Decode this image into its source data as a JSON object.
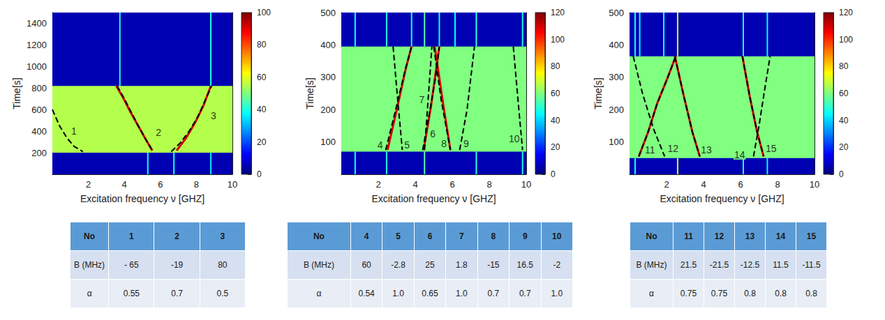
{
  "chart_data": [
    {
      "type": "heatmap",
      "xlabel": "Excitation frequency ν [GHZ]",
      "ylabel": "Time[s]",
      "xlim": [
        0,
        10
      ],
      "xticks": [
        2,
        4,
        6,
        8,
        10
      ],
      "ylim": [
        0,
        1500
      ],
      "yticks": [
        200,
        400,
        600,
        800,
        1000,
        1200,
        1400
      ],
      "grid": false,
      "colorbar": {
        "range": [
          0,
          100
        ],
        "ticks": [
          0,
          20,
          40,
          60,
          80,
          100
        ]
      },
      "regions": [
        {
          "x": [
            0,
            10
          ],
          "y": [
            0,
            1500
          ],
          "value": 5
        },
        {
          "x": [
            0,
            10
          ],
          "y": [
            200,
            820
          ],
          "value": 55
        }
      ],
      "lines": [
        {
          "x": 3.75,
          "y": [
            820,
            1500
          ],
          "value": 40
        },
        {
          "x": 8.8,
          "y": [
            820,
            1500
          ],
          "value": 40
        },
        {
          "x": 5.3,
          "y": [
            0,
            200
          ],
          "value": 40
        },
        {
          "x": 6.75,
          "y": [
            0,
            200
          ],
          "value": 40
        },
        {
          "x": 8.8,
          "y": [
            0,
            200
          ],
          "value": 35
        }
      ],
      "series": [
        {
          "type": "line",
          "color": "#d40000",
          "line_style": "solid",
          "values": [
            [
              3.55,
              820
            ],
            [
              3.9,
              720
            ],
            [
              4.3,
              590
            ],
            [
              4.8,
              440
            ],
            [
              5.2,
              320
            ],
            [
              5.55,
              220
            ]
          ]
        },
        {
          "type": "line",
          "color": "#d40000",
          "line_style": "solid",
          "values": [
            [
              6.9,
              220
            ],
            [
              7.4,
              330
            ],
            [
              7.9,
              470
            ],
            [
              8.4,
              640
            ],
            [
              8.8,
              820
            ]
          ]
        },
        {
          "type": "line",
          "color": "#000000",
          "line_style": "dashed",
          "values": [
            [
              0,
              600
            ],
            [
              0.4,
              450
            ],
            [
              0.8,
              340
            ],
            [
              1.2,
              260
            ],
            [
              1.7,
              210
            ]
          ]
        },
        {
          "type": "line",
          "color": "#000000",
          "line_style": "dashed",
          "values": [
            [
              3.6,
              820
            ],
            [
              4.0,
              700
            ],
            [
              4.4,
              570
            ],
            [
              4.8,
              440
            ],
            [
              5.2,
              320
            ],
            [
              5.6,
              210
            ]
          ]
        },
        {
          "type": "line",
          "color": "#000000",
          "line_style": "dashed",
          "values": [
            [
              6.6,
              210
            ],
            [
              7.1,
              290
            ],
            [
              7.6,
              400
            ],
            [
              8.1,
              540
            ],
            [
              8.5,
              690
            ],
            [
              8.85,
              820
            ]
          ]
        }
      ],
      "annotations": [
        {
          "text": "1",
          "x": 1.2,
          "y": 400
        },
        {
          "text": "2",
          "x": 5.9,
          "y": 390
        },
        {
          "text": "3",
          "x": 8.95,
          "y": 540
        }
      ]
    },
    {
      "type": "heatmap",
      "xlabel": "Excitation frequency ν [GHZ]",
      "ylabel": "Time[s]",
      "xlim": [
        0,
        10
      ],
      "xticks": [
        2,
        4,
        6,
        8,
        10
      ],
      "ylim": [
        0,
        500
      ],
      "yticks": [
        100,
        200,
        300,
        400,
        500
      ],
      "grid": false,
      "colorbar": {
        "range": [
          0,
          120
        ],
        "ticks": [
          0,
          20,
          40,
          60,
          80,
          100,
          120
        ]
      },
      "regions": [
        {
          "x": [
            0,
            10
          ],
          "y": [
            0,
            500
          ],
          "value": 6
        },
        {
          "x": [
            0,
            10
          ],
          "y": [
            70,
            395
          ],
          "value": 60
        }
      ],
      "lines": [
        {
          "x": 0.75,
          "y": [
            395,
            500
          ],
          "value": 48
        },
        {
          "x": 2.45,
          "y": [
            395,
            500
          ],
          "value": 48
        },
        {
          "x": 3.8,
          "y": [
            395,
            500
          ],
          "value": 48
        },
        {
          "x": 4.5,
          "y": [
            395,
            500
          ],
          "value": 55
        },
        {
          "x": 5.3,
          "y": [
            395,
            500
          ],
          "value": 48
        },
        {
          "x": 6.15,
          "y": [
            395,
            500
          ],
          "value": 45
        },
        {
          "x": 7.3,
          "y": [
            395,
            500
          ],
          "value": 50
        },
        {
          "x": 9.8,
          "y": [
            395,
            500
          ],
          "value": 48
        },
        {
          "x": 0.75,
          "y": [
            0,
            70
          ],
          "value": 48
        },
        {
          "x": 2.45,
          "y": [
            0,
            70
          ],
          "value": 48
        },
        {
          "x": 4.5,
          "y": [
            0,
            70
          ],
          "value": 55
        },
        {
          "x": 7.3,
          "y": [
            0,
            70
          ],
          "value": 50
        },
        {
          "x": 9.8,
          "y": [
            0,
            70
          ],
          "value": 48
        }
      ],
      "series": [
        {
          "type": "line",
          "color": "#d40000",
          "line_style": "solid",
          "values": [
            [
              2.5,
              75
            ],
            [
              3.0,
              200
            ],
            [
              3.5,
              330
            ],
            [
              3.8,
              395
            ]
          ]
        },
        {
          "type": "line",
          "color": "#d40000",
          "line_style": "solid",
          "values": [
            [
              4.45,
              75
            ],
            [
              4.85,
              210
            ],
            [
              5.3,
              395
            ]
          ]
        },
        {
          "type": "line",
          "color": "#d40000",
          "line_style": "solid",
          "values": [
            [
              5.05,
              395
            ],
            [
              5.5,
              220
            ],
            [
              5.9,
              75
            ]
          ]
        },
        {
          "type": "line",
          "color": "#000000",
          "line_style": "dashed",
          "values": [
            [
              2.4,
              75
            ],
            [
              2.9,
              190
            ],
            [
              3.4,
              310
            ],
            [
              3.8,
              395
            ]
          ]
        },
        {
          "type": "line",
          "color": "#000000",
          "line_style": "dashed",
          "values": [
            [
              2.8,
              395
            ],
            [
              3.05,
              230
            ],
            [
              3.3,
              75
            ]
          ]
        },
        {
          "type": "line",
          "color": "#000000",
          "line_style": "dashed",
          "values": [
            [
              4.4,
              75
            ],
            [
              4.8,
              200
            ],
            [
              5.1,
              300
            ],
            [
              5.3,
              395
            ]
          ]
        },
        {
          "type": "line",
          "color": "#000000",
          "line_style": "dashed",
          "values": [
            [
              4.5,
              75
            ],
            [
              4.9,
              395
            ]
          ]
        },
        {
          "type": "line",
          "color": "#000000",
          "line_style": "dashed",
          "values": [
            [
              5.0,
              395
            ],
            [
              5.4,
              230
            ],
            [
              5.9,
              75
            ]
          ]
        },
        {
          "type": "line",
          "color": "#000000",
          "line_style": "dashed",
          "values": [
            [
              6.4,
              75
            ],
            [
              6.8,
              200
            ],
            [
              7.2,
              395
            ]
          ]
        },
        {
          "type": "line",
          "color": "#000000",
          "line_style": "dashed",
          "values": [
            [
              9.3,
              395
            ],
            [
              9.6,
              200
            ],
            [
              9.8,
              75
            ]
          ]
        }
      ],
      "annotations": [
        {
          "text": "4",
          "x": 2.1,
          "y": 90
        },
        {
          "text": "5",
          "x": 3.55,
          "y": 90
        },
        {
          "text": "6",
          "x": 4.95,
          "y": 125
        },
        {
          "text": "7",
          "x": 4.35,
          "y": 230
        },
        {
          "text": "8",
          "x": 5.55,
          "y": 95
        },
        {
          "text": "9",
          "x": 6.75,
          "y": 95
        },
        {
          "text": "10",
          "x": 9.35,
          "y": 110
        }
      ]
    },
    {
      "type": "heatmap",
      "xlabel": "Excitation frequency ν [GHZ]",
      "ylabel": "Time[s]",
      "xlim": [
        0,
        10
      ],
      "xticks": [
        2,
        4,
        6,
        8,
        10
      ],
      "ylim": [
        0,
        500
      ],
      "yticks": [
        100,
        200,
        300,
        400,
        500
      ],
      "grid": false,
      "colorbar": {
        "range": [
          0,
          120
        ],
        "ticks": [
          0,
          20,
          40,
          60,
          80,
          100,
          120
        ]
      },
      "regions": [
        {
          "x": [
            0,
            10
          ],
          "y": [
            0,
            500
          ],
          "value": 6
        },
        {
          "x": [
            0,
            10
          ],
          "y": [
            50,
            365
          ],
          "value": 60
        }
      ],
      "lines": [
        {
          "x": 0.3,
          "y": [
            365,
            500
          ],
          "value": 48
        },
        {
          "x": 0.55,
          "y": [
            365,
            500
          ],
          "value": 45
        },
        {
          "x": 1.85,
          "y": [
            365,
            500
          ],
          "value": 48
        },
        {
          "x": 2.6,
          "y": [
            365,
            500
          ],
          "value": 70
        },
        {
          "x": 6.15,
          "y": [
            365,
            500
          ],
          "value": 50
        },
        {
          "x": 7.45,
          "y": [
            365,
            500
          ],
          "value": 45
        },
        {
          "x": 0.3,
          "y": [
            0,
            50
          ],
          "value": 48
        },
        {
          "x": 2.6,
          "y": [
            0,
            50
          ],
          "value": 70
        },
        {
          "x": 6.15,
          "y": [
            0,
            50
          ],
          "value": 50
        },
        {
          "x": 7.45,
          "y": [
            0,
            50
          ],
          "value": 45
        }
      ],
      "series": [
        {
          "type": "line",
          "color": "#d40000",
          "line_style": "solid",
          "values": [
            [
              0.5,
              55
            ],
            [
              1.0,
              130
            ],
            [
              1.5,
              220
            ],
            [
              2.0,
              290
            ],
            [
              2.5,
              365
            ]
          ]
        },
        {
          "type": "line",
          "color": "#d40000",
          "line_style": "solid",
          "values": [
            [
              2.45,
              365
            ],
            [
              2.9,
              250
            ],
            [
              3.4,
              130
            ],
            [
              3.8,
              55
            ]
          ]
        },
        {
          "type": "line",
          "color": "#d40000",
          "line_style": "solid",
          "values": [
            [
              6.1,
              365
            ],
            [
              6.5,
              240
            ],
            [
              6.9,
              130
            ],
            [
              7.25,
              55
            ]
          ]
        },
        {
          "type": "line",
          "color": "#000000",
          "line_style": "dashed",
          "values": [
            [
              0.2,
              365
            ],
            [
              0.7,
              250
            ],
            [
              1.3,
              140
            ],
            [
              1.9,
              55
            ]
          ]
        },
        {
          "type": "line",
          "color": "#000000",
          "line_style": "dashed",
          "values": [
            [
              0.5,
              55
            ],
            [
              1.0,
              130
            ],
            [
              1.5,
              220
            ],
            [
              2.0,
              290
            ],
            [
              2.5,
              365
            ]
          ]
        },
        {
          "type": "line",
          "color": "#000000",
          "line_style": "dashed",
          "values": [
            [
              2.45,
              365
            ],
            [
              2.9,
              250
            ],
            [
              3.4,
              130
            ],
            [
              3.8,
              55
            ]
          ]
        },
        {
          "type": "line",
          "color": "#000000",
          "line_style": "dashed",
          "values": [
            [
              6.1,
              365
            ],
            [
              6.5,
              240
            ],
            [
              6.9,
              130
            ],
            [
              7.25,
              55
            ]
          ]
        },
        {
          "type": "line",
          "color": "#000000",
          "line_style": "dashed",
          "values": [
            [
              6.7,
              55
            ],
            [
              7.0,
              150
            ],
            [
              7.3,
              260
            ],
            [
              7.6,
              365
            ]
          ]
        }
      ],
      "annotations": [
        {
          "text": "11",
          "x": 1.1,
          "y": 75
        },
        {
          "text": "12",
          "x": 2.35,
          "y": 80
        },
        {
          "text": "13",
          "x": 4.15,
          "y": 75
        },
        {
          "text": "14",
          "x": 5.95,
          "y": 60
        },
        {
          "text": "15",
          "x": 7.65,
          "y": 80
        }
      ]
    }
  ],
  "tables": [
    {
      "header": [
        "No",
        "1",
        "2",
        "3"
      ],
      "rows": [
        [
          "B (MHz)",
          "- 65",
          "-19",
          "80"
        ],
        [
          "α",
          "0.55",
          "0.7",
          "0.5"
        ]
      ]
    },
    {
      "header": [
        "No",
        "4",
        "5",
        "6",
        "7",
        "8",
        "9",
        "10"
      ],
      "rows": [
        [
          "B (MHz)",
          "60",
          "-2.8",
          "25",
          "1.8",
          "-15",
          "16.5",
          "-2"
        ],
        [
          "α",
          "0.54",
          "1.0",
          "0.65",
          "1.0",
          "0.7",
          "0.7",
          "1.0"
        ]
      ]
    },
    {
      "header": [
        "No",
        "11",
        "12",
        "13",
        "14",
        "15"
      ],
      "rows": [
        [
          "B (MHz)",
          "21.5",
          "-21.5",
          "-12.5",
          "11.5",
          "-11.5"
        ],
        [
          "α",
          "0.75",
          "0.75",
          "0.8",
          "0.8",
          "0.8"
        ]
      ]
    }
  ]
}
